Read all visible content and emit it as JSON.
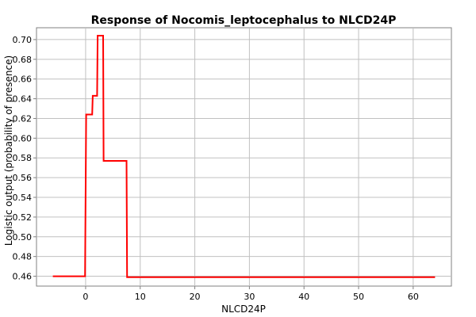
{
  "chart_data": {
    "type": "line",
    "title": "Response of Nocomis_leptocephalus to NLCD24P",
    "xlabel": "NLCD24P",
    "ylabel": "Logistic output (probability of presence)",
    "xlim": [
      -9,
      67
    ],
    "ylim": [
      0.45,
      0.712
    ],
    "xticks": [
      0,
      10,
      20,
      30,
      40,
      50,
      60
    ],
    "yticks": [
      0.46,
      0.48,
      0.5,
      0.52,
      0.54,
      0.56,
      0.58,
      0.6,
      0.62,
      0.64,
      0.66,
      0.68,
      0.7
    ],
    "ytick_labels": [
      "0.46",
      "0.48",
      "0.50",
      "0.52",
      "0.54",
      "0.56",
      "0.58",
      "0.60",
      "0.62",
      "0.64",
      "0.66",
      "0.68",
      "0.70"
    ],
    "grid": true,
    "series": [
      {
        "color": "#ff0000",
        "x": [
          -6,
          -0.1,
          0.1,
          1.2,
          1.3,
          2.1,
          2.2,
          3.2,
          3.3,
          7.5,
          7.6,
          64
        ],
        "y": [
          0.46,
          0.46,
          0.624,
          0.624,
          0.643,
          0.643,
          0.704,
          0.704,
          0.577,
          0.577,
          0.459,
          0.459
        ]
      }
    ]
  }
}
